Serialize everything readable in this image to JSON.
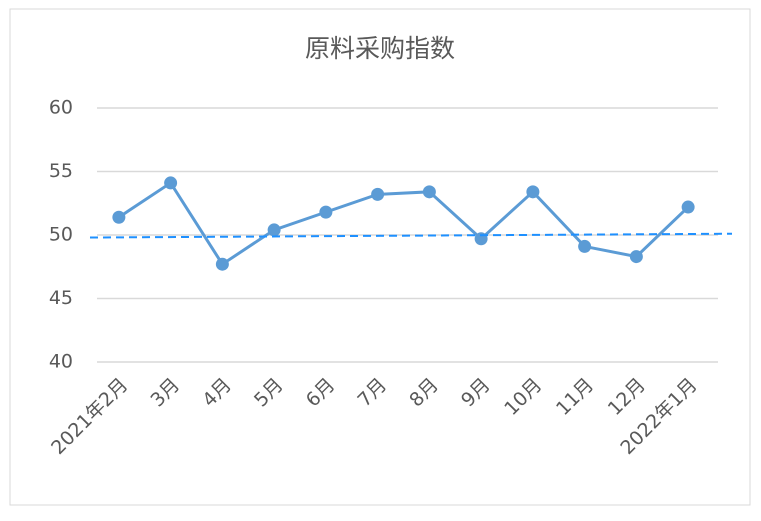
{
  "chart_data": {
    "type": "line",
    "title": "原料采购指数",
    "categories": [
      "2021年2月",
      "3月",
      "4月",
      "5月",
      "6月",
      "7月",
      "8月",
      "9月",
      "10月",
      "11月",
      "12月",
      "2022年1月"
    ],
    "series": [
      {
        "color": "#5b9bd5",
        "values": [
          51.4,
          54.1,
          47.7,
          50.4,
          51.8,
          53.2,
          53.4,
          49.7,
          53.4,
          49.1,
          48.3,
          52.2
        ]
      }
    ],
    "trendline": {
      "color": "#1e90ff",
      "style": "dashed",
      "values": [
        49.8,
        50.1
      ]
    },
    "ylim": [
      40,
      60
    ],
    "yticks": [
      40,
      45,
      50,
      55,
      60
    ],
    "grid": true
  }
}
